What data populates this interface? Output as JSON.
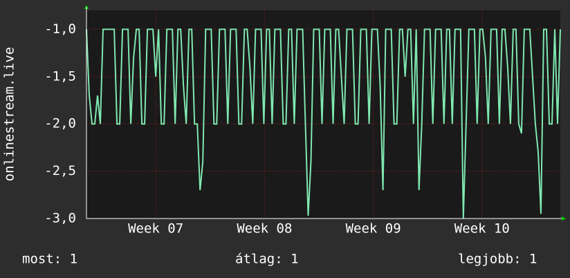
{
  "chart_data": {
    "type": "line",
    "y_label": "onlinestream.live",
    "series": [
      {
        "name": "onlinestream.live",
        "color": "#7fe8b0",
        "values": [
          -1,
          -1.7,
          -2,
          -2,
          -1.7,
          -2,
          -1,
          -1,
          -1,
          -1,
          -1,
          -2,
          -2,
          -1,
          -1,
          -1,
          -2,
          -1.3,
          -1,
          -1,
          -2,
          -2,
          -1,
          -1,
          -1,
          -1.5,
          -1,
          -2,
          -2,
          -1,
          -1,
          -1,
          -2,
          -1,
          -1,
          -1.6,
          -2,
          -1,
          -1,
          -2,
          -2,
          -2.7,
          -2.4,
          -1,
          -1,
          -1,
          -2,
          -2,
          -1,
          -1,
          -1,
          -2,
          -1,
          -1,
          -1,
          -2,
          -2,
          -1,
          -1,
          -1.4,
          -2,
          -1,
          -1,
          -1,
          -2,
          -1,
          -1,
          -2,
          -1,
          -1,
          -1,
          -2,
          -2,
          -1,
          -1,
          -2,
          -1,
          -1,
          -1,
          -2,
          -2.97,
          -2.4,
          -1,
          -1,
          -1,
          -2,
          -1,
          -1,
          -1,
          -2,
          -1,
          -1,
          -1.5,
          -2,
          -1,
          -1,
          -1,
          -2,
          -2,
          -1,
          -1,
          -1,
          -2,
          -1,
          -1,
          -1,
          -1.6,
          -2.7,
          -1,
          -1,
          -1,
          -2,
          -2,
          -1,
          -1,
          -1.5,
          -1,
          -1,
          -2,
          -1,
          -2.7,
          -2,
          -1,
          -1,
          -1,
          -2,
          -1,
          -1,
          -1,
          -2,
          -1,
          -1,
          -2,
          -1,
          -1,
          -1,
          -3,
          -2,
          -1,
          -1,
          -1,
          -2,
          -1,
          -1,
          -1.3,
          -2,
          -1,
          -1,
          -1,
          -2,
          -1,
          -1,
          -1.4,
          -2,
          -1,
          -1,
          -2,
          -2.1,
          -1,
          -1,
          -1,
          -1.5,
          -2,
          -2.3,
          -2.95,
          -1,
          -1,
          -2,
          -2,
          -1,
          -2,
          -1
        ]
      }
    ],
    "xlim": [
      0,
      171
    ],
    "xticks": [
      {
        "value": 25,
        "label": "Week 07"
      },
      {
        "value": 64.25,
        "label": "Week 08"
      },
      {
        "value": 103.5,
        "label": "Week 09"
      },
      {
        "value": 142.75,
        "label": "Week 10"
      }
    ],
    "ylim": [
      -3,
      -0.8
    ],
    "yticks": [
      {
        "value": -3,
        "label": "-3,0"
      },
      {
        "value": -2.5,
        "label": "-2,5"
      },
      {
        "value": -2,
        "label": "-2,0"
      },
      {
        "value": -1.5,
        "label": "-1,5"
      },
      {
        "value": -1,
        "label": "-1,0"
      }
    ],
    "grid": true,
    "footer": [
      "most: 1",
      "átlag: 1",
      "legjobb: 1"
    ]
  }
}
